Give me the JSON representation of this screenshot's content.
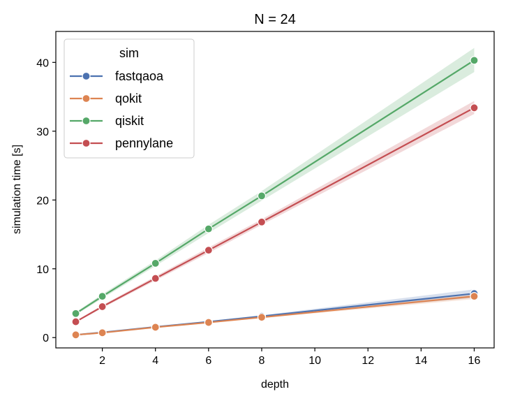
{
  "chart_data": {
    "type": "line",
    "title": "N = 24",
    "xlabel": "depth",
    "ylabel": "simulation time [s]",
    "xlim": [
      0.25,
      16.75
    ],
    "ylim": [
      -1.5,
      44.5
    ],
    "xticks": [
      2,
      4,
      6,
      8,
      10,
      12,
      14,
      16
    ],
    "yticks": [
      0,
      10,
      20,
      30,
      40
    ],
    "grid": false,
    "legend": {
      "title": "sim",
      "position": "top-left"
    },
    "x": [
      1,
      2,
      4,
      6,
      8,
      16
    ],
    "series": [
      {
        "name": "fastqaoa",
        "color": "#4c72b0",
        "values": [
          0.4,
          0.75,
          1.55,
          2.3,
          3.1,
          6.4
        ],
        "ci_low": [
          0.35,
          0.7,
          1.45,
          2.2,
          2.95,
          5.8
        ],
        "ci_high": [
          0.45,
          0.8,
          1.65,
          2.4,
          3.25,
          7.0
        ]
      },
      {
        "name": "qokit",
        "color": "#dd8452",
        "values": [
          0.4,
          0.7,
          1.5,
          2.2,
          2.95,
          6.0
        ],
        "ci_low": [
          0.35,
          0.65,
          1.4,
          2.1,
          2.85,
          5.6
        ],
        "ci_high": [
          0.45,
          0.75,
          1.6,
          2.3,
          3.05,
          6.4
        ]
      },
      {
        "name": "qiskit",
        "color": "#55a868",
        "values": [
          3.5,
          6.0,
          10.8,
          15.8,
          20.6,
          40.3
        ],
        "ci_low": [
          3.3,
          5.7,
          10.4,
          15.2,
          19.9,
          38.6
        ],
        "ci_high": [
          3.7,
          6.3,
          11.2,
          16.4,
          21.3,
          42.1
        ]
      },
      {
        "name": "pennylane",
        "color": "#c44e52",
        "values": [
          2.3,
          4.5,
          8.6,
          12.7,
          16.8,
          33.4
        ],
        "ci_low": [
          2.2,
          4.3,
          8.3,
          12.3,
          16.4,
          32.5
        ],
        "ci_high": [
          2.4,
          4.7,
          8.9,
          13.1,
          17.2,
          34.4
        ]
      }
    ]
  }
}
